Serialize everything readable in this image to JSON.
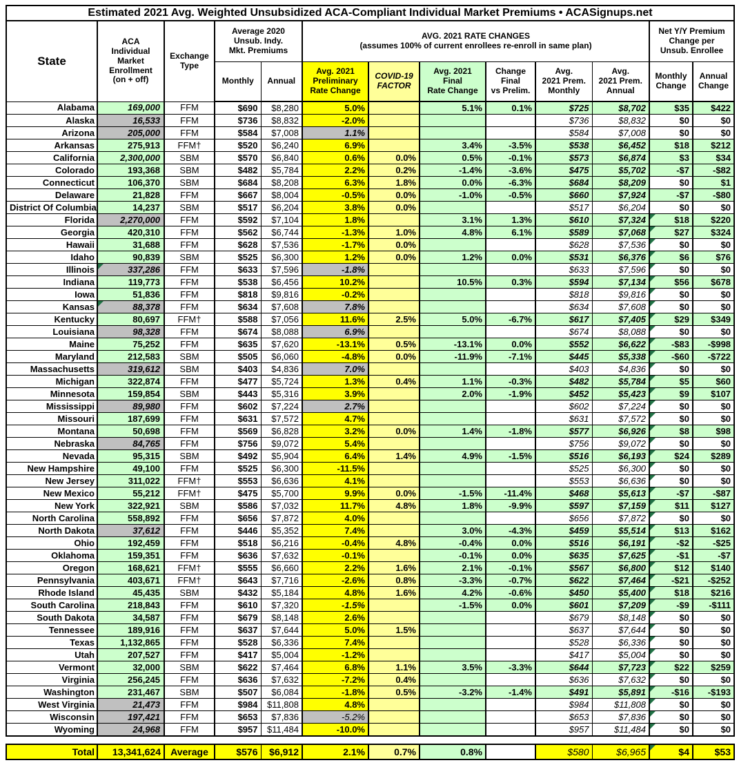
{
  "title": "Estimated 2021 Avg. Weighted Unsubsidized ACA-Compliant Individual Market Premiums • ACASignups.net",
  "colors": {
    "cell_green": "#CCFFCC",
    "cell_gray": "#C0C0C0",
    "cell_yellow": "#FFFF00",
    "cell_pale_yellow": "#FFFF99",
    "triangle_indicator": "#217346",
    "border": "#000000"
  },
  "header": {
    "state": "State",
    "enrollment": "ACA\nIndividual\nMarket\nEnrollment\n(on + off)",
    "exchange": "Exchange\nType",
    "avg2020_group": "Average 2020\nUnsub. Indy.\nMkt. Premiums",
    "monthly": "Monthly",
    "annual": "Annual",
    "rate_group": "AVG. 2021 RATE CHANGES\n(assumes 100% of current enrollees re-enroll in same plan)",
    "prelim": "Avg. 2021\nPreliminary\nRate Change",
    "covid": "COVID-19\nFACTOR",
    "final": "Avg. 2021\nFinal\nRate Change",
    "change": "Change\nFinal\nvs Prelim.",
    "prem_monthly": "Avg.\n2021 Prem.\nMonthly",
    "prem_annual": "Avg.\n2021 Prem.\nAnnual",
    "net_group": "Net Y/Y Premium\nChange per\nUnsub. Enrollee",
    "monthly_change": "Monthly\nChange",
    "annual_change": "Annual\nChange"
  },
  "chart_data": {
    "type": "table",
    "columns": [
      "State",
      "ACA Individual Market Enrollment (on + off)",
      "Exchange Type",
      "Average 2020 Monthly Premium",
      "Average 2020 Annual Premium",
      "Avg. 2021 Preliminary Rate Change",
      "COVID-19 Factor",
      "Avg. 2021 Final Rate Change",
      "Change Final vs Prelim.",
      "Avg. 2021 Prem. Monthly",
      "Avg. 2021 Prem. Annual",
      "Monthly Change",
      "Annual Change",
      "style_flags"
    ],
    "flag_legend": "g=gray enrollment cell, i=italic enrollment, e=triangle on enrollment cell, p=gray prelim cell, j=italic prelim, n=non-bold prelim, t=triangle on monthly-change cell",
    "rows": [
      [
        "Alabama",
        "169,000",
        "FFM",
        "$690",
        "$8,280",
        "5.0%",
        "",
        "5.1%",
        "0.1%",
        "$725",
        "$8,702",
        "$35",
        "$422",
        "i"
      ],
      [
        "Alaska",
        "16,533",
        "FFM",
        "$736",
        "$8,832",
        "-2.0%",
        "",
        "",
        "",
        "$736",
        "$8,832",
        "$0",
        "$0",
        "gi"
      ],
      [
        "Arizona",
        "205,000",
        "FFM",
        "$584",
        "$7,008",
        "1.1%",
        "",
        "",
        "",
        "$584",
        "$7,008",
        "$0",
        "$0",
        "gipj"
      ],
      [
        "Arkansas",
        "275,913",
        "FFM†",
        "$520",
        "$6,240",
        "6.9%",
        "",
        "3.4%",
        "-3.5%",
        "$538",
        "$6,452",
        "$18",
        "$212",
        ""
      ],
      [
        "California",
        "2,300,000",
        "SBM",
        "$570",
        "$6,840",
        "0.6%",
        "0.0%",
        "0.5%",
        "-0.1%",
        "$573",
        "$6,874",
        "$3",
        "$34",
        "i"
      ],
      [
        "Colorado",
        "193,368",
        "SBM",
        "$482",
        "$5,784",
        "2.2%",
        "0.2%",
        "-1.4%",
        "-3.6%",
        "$475",
        "$5,702",
        "-$7",
        "-$82",
        ""
      ],
      [
        "Connecticut",
        "106,370",
        "SBM",
        "$684",
        "$8,208",
        "6.3%",
        "1.8%",
        "0.0%",
        "-6.3%",
        "$684",
        "$8,209",
        "$0",
        "$1",
        ""
      ],
      [
        "Delaware",
        "21,828",
        "FFM",
        "$667",
        "$8,004",
        "-0.5%",
        "0.0%",
        "-1.0%",
        "-0.5%",
        "$660",
        "$7,924",
        "-$7",
        "-$80",
        ""
      ],
      [
        "District Of Columbia",
        "14,237",
        "SBM",
        "$517",
        "$6,204",
        "3.8%",
        "0.0%",
        "",
        "",
        "$517",
        "$6,204",
        "$0",
        "$0",
        ""
      ],
      [
        "Florida",
        "2,270,000",
        "FFM",
        "$592",
        "$7,104",
        "1.8%",
        "",
        "3.1%",
        "1.3%",
        "$610",
        "$7,324",
        "$18",
        "$220",
        "git"
      ],
      [
        "Georgia",
        "420,310",
        "FFM",
        "$562",
        "$6,744",
        "-1.3%",
        "1.0%",
        "4.8%",
        "6.1%",
        "$589",
        "$7,068",
        "$27",
        "$324",
        "t"
      ],
      [
        "Hawaii",
        "31,688",
        "FFM",
        "$628",
        "$7,536",
        "-1.7%",
        "0.0%",
        "",
        "",
        "$628",
        "$7,536",
        "$0",
        "$0",
        "t"
      ],
      [
        "Idaho",
        "90,839",
        "SBM",
        "$525",
        "$6,300",
        "1.2%",
        "0.0%",
        "1.2%",
        "0.0%",
        "$531",
        "$6,376",
        "$6",
        "$76",
        "t"
      ],
      [
        "Illinois",
        "337,286",
        "FFM",
        "$633",
        "$7,596",
        "-1.8%",
        "",
        "",
        "",
        "$633",
        "$7,596",
        "$0",
        "$0",
        "giepjt"
      ],
      [
        "Indiana",
        "119,773",
        "FFM",
        "$538",
        "$6,456",
        "10.2%",
        "",
        "10.5%",
        "0.3%",
        "$594",
        "$7,134",
        "$56",
        "$678",
        "t"
      ],
      [
        "Iowa",
        "51,836",
        "FFM",
        "$818",
        "$9,816",
        "-0.2%",
        "",
        "",
        "",
        "$818",
        "$9,816",
        "$0",
        "$0",
        "t"
      ],
      [
        "Kansas",
        "88,378",
        "FFM",
        "$634",
        "$7,608",
        "7.8%",
        "",
        "",
        "",
        "$634",
        "$7,608",
        "$0",
        "$0",
        "giepjt"
      ],
      [
        "Kentucky",
        "80,697",
        "FFM†",
        "$588",
        "$7,056",
        "11.6%",
        "2.5%",
        "5.0%",
        "-6.7%",
        "$617",
        "$7,405",
        "$29",
        "$349",
        "t"
      ],
      [
        "Louisiana",
        "98,328",
        "FFM",
        "$674",
        "$8,088",
        "6.9%",
        "",
        "",
        "",
        "$674",
        "$8,088",
        "$0",
        "$0",
        "gipjt"
      ],
      [
        "Maine",
        "75,252",
        "FFM",
        "$635",
        "$7,620",
        "-13.1%",
        "0.5%",
        "-13.1%",
        "0.0%",
        "$552",
        "$6,622",
        "-$83",
        "-$998",
        "t"
      ],
      [
        "Maryland",
        "212,583",
        "SBM",
        "$505",
        "$6,060",
        "-4.8%",
        "0.0%",
        "-11.9%",
        "-7.1%",
        "$445",
        "$5,338",
        "-$60",
        "-$722",
        "t"
      ],
      [
        "Massachusetts",
        "319,612",
        "SBM",
        "$403",
        "$4,836",
        "7.0%",
        "",
        "",
        "",
        "$403",
        "$4,836",
        "$0",
        "$0",
        "gipjt"
      ],
      [
        "Michigan",
        "322,874",
        "FFM",
        "$477",
        "$5,724",
        "1.3%",
        "0.4%",
        "1.1%",
        "-0.3%",
        "$482",
        "$5,784",
        "$5",
        "$60",
        "t"
      ],
      [
        "Minnesota",
        "159,854",
        "SBM",
        "$443",
        "$5,316",
        "3.9%",
        "",
        "2.0%",
        "-1.9%",
        "$452",
        "$5,423",
        "$9",
        "$107",
        "t"
      ],
      [
        "Mississippi",
        "89,980",
        "FFM",
        "$602",
        "$7,224",
        "2.7%",
        "",
        "",
        "",
        "$602",
        "$7,224",
        "$0",
        "$0",
        "gipjt"
      ],
      [
        "Missouri",
        "187,699",
        "FFM",
        "$631",
        "$7,572",
        "4.7%",
        "",
        "",
        "",
        "$631",
        "$7,572",
        "$0",
        "$0",
        "t"
      ],
      [
        "Montana",
        "50,698",
        "FFM",
        "$569",
        "$6,828",
        "3.2%",
        "0.0%",
        "1.4%",
        "-1.8%",
        "$577",
        "$6,926",
        "$8",
        "$98",
        "t"
      ],
      [
        "Nebraska",
        "84,765",
        "FFM",
        "$756",
        "$9,072",
        "5.4%",
        "",
        "",
        "",
        "$756",
        "$9,072",
        "$0",
        "$0",
        "git"
      ],
      [
        "Nevada",
        "95,315",
        "SBM",
        "$492",
        "$5,904",
        "6.4%",
        "1.4%",
        "4.9%",
        "-1.5%",
        "$516",
        "$6,193",
        "$24",
        "$289",
        "t"
      ],
      [
        "New Hampshire",
        "49,100",
        "FFM",
        "$525",
        "$6,300",
        "-11.5%",
        "",
        "",
        "",
        "$525",
        "$6,300",
        "$0",
        "$0",
        "t"
      ],
      [
        "New Jersey",
        "311,022",
        "FFM†",
        "$553",
        "$6,636",
        "4.1%",
        "",
        "",
        "",
        "$553",
        "$6,636",
        "$0",
        "$0",
        "t"
      ],
      [
        "New Mexico",
        "55,212",
        "FFM†",
        "$475",
        "$5,700",
        "9.9%",
        "0.0%",
        "-1.5%",
        "-11.4%",
        "$468",
        "$5,613",
        "-$7",
        "-$87",
        "t"
      ],
      [
        "New York",
        "322,921",
        "SBM",
        "$586",
        "$7,032",
        "11.7%",
        "4.8%",
        "1.8%",
        "-9.9%",
        "$597",
        "$7,159",
        "$11",
        "$127",
        "t"
      ],
      [
        "North Carolina",
        "558,892",
        "FFM",
        "$656",
        "$7,872",
        "4.0%",
        "",
        "",
        "",
        "$656",
        "$7,872",
        "$0",
        "$0",
        "t"
      ],
      [
        "North Dakota",
        "37,612",
        "FFM",
        "$446",
        "$5,352",
        "7.4%",
        "",
        "3.0%",
        "-4.3%",
        "$459",
        "$5,514",
        "$13",
        "$162",
        "git"
      ],
      [
        "Ohio",
        "192,459",
        "FFM",
        "$518",
        "$6,216",
        "-0.4%",
        "4.8%",
        "-0.4%",
        "0.0%",
        "$516",
        "$6,191",
        "-$2",
        "-$25",
        "t"
      ],
      [
        "Oklahoma",
        "159,351",
        "FFM",
        "$636",
        "$7,632",
        "-0.1%",
        "",
        "-0.1%",
        "0.0%",
        "$635",
        "$7,625",
        "-$1",
        "-$7",
        "t"
      ],
      [
        "Oregon",
        "168,621",
        "FFM†",
        "$555",
        "$6,660",
        "2.2%",
        "1.6%",
        "2.1%",
        "-0.1%",
        "$567",
        "$6,800",
        "$12",
        "$140",
        "t"
      ],
      [
        "Pennsylvania",
        "403,671",
        "FFM†",
        "$643",
        "$7,716",
        "-2.6%",
        "0.8%",
        "-3.3%",
        "-0.7%",
        "$622",
        "$7,464",
        "-$21",
        "-$252",
        "t"
      ],
      [
        "Rhode Island",
        "45,435",
        "SBM",
        "$432",
        "$5,184",
        "4.8%",
        "1.6%",
        "4.2%",
        "-0.6%",
        "$450",
        "$5,400",
        "$18",
        "$216",
        "t"
      ],
      [
        "South Carolina",
        "218,843",
        "FFM",
        "$610",
        "$7,320",
        "-1.5%",
        "",
        "-1.5%",
        "0.0%",
        "$601",
        "$7,209",
        "-$9",
        "-$111",
        "jt"
      ],
      [
        "South Dakota",
        "34,587",
        "FFM",
        "$679",
        "$8,148",
        "2.6%",
        "",
        "",
        "",
        "$679",
        "$8,148",
        "$0",
        "$0",
        "t"
      ],
      [
        "Tennessee",
        "189,916",
        "FFM",
        "$637",
        "$7,644",
        "5.0%",
        "1.5%",
        "",
        "",
        "$637",
        "$7,644",
        "$0",
        "$0",
        "t"
      ],
      [
        "Texas",
        "1,132,865",
        "FFM",
        "$528",
        "$6,336",
        "7.4%",
        "",
        "",
        "",
        "$528",
        "$6,336",
        "$0",
        "$0",
        "t"
      ],
      [
        "Utah",
        "207,527",
        "FFM",
        "$417",
        "$5,004",
        "-1.2%",
        "",
        "",
        "",
        "$417",
        "$5,004",
        "$0",
        "$0",
        "t"
      ],
      [
        "Vermont",
        "32,000",
        "SBM",
        "$622",
        "$7,464",
        "6.8%",
        "1.1%",
        "3.5%",
        "-3.3%",
        "$644",
        "$7,723",
        "$22",
        "$259",
        "t"
      ],
      [
        "Virginia",
        "256,245",
        "FFM",
        "$636",
        "$7,632",
        "-7.2%",
        "0.4%",
        "",
        "",
        "$636",
        "$7,632",
        "$0",
        "$0",
        "t"
      ],
      [
        "Washington",
        "231,467",
        "SBM",
        "$507",
        "$6,084",
        "-1.8%",
        "0.5%",
        "-3.2%",
        "-1.4%",
        "$491",
        "$5,891",
        "-$16",
        "-$193",
        "t"
      ],
      [
        "West Virginia",
        "21,473",
        "FFM",
        "$984",
        "$11,808",
        "4.8%",
        "",
        "",
        "",
        "$984",
        "$11,808",
        "$0",
        "$0",
        "git"
      ],
      [
        "Wisconsin",
        "197,421",
        "FFM",
        "$653",
        "$7,836",
        "-5.2%",
        "",
        "",
        "",
        "$653",
        "$7,836",
        "$0",
        "$0",
        "gipjnt"
      ],
      [
        "Wyoming",
        "24,968",
        "FFM",
        "$957",
        "$11,484",
        "-10.0%",
        "",
        "",
        "",
        "$957",
        "$11,484",
        "$0",
        "$0",
        "git"
      ]
    ],
    "total": [
      "Total",
      "13,341,624",
      "Average",
      "$576",
      "$6,912",
      "2.1%",
      "0.7%",
      "0.8%",
      "",
      "$580",
      "$6,965",
      "$4",
      "$53"
    ]
  }
}
